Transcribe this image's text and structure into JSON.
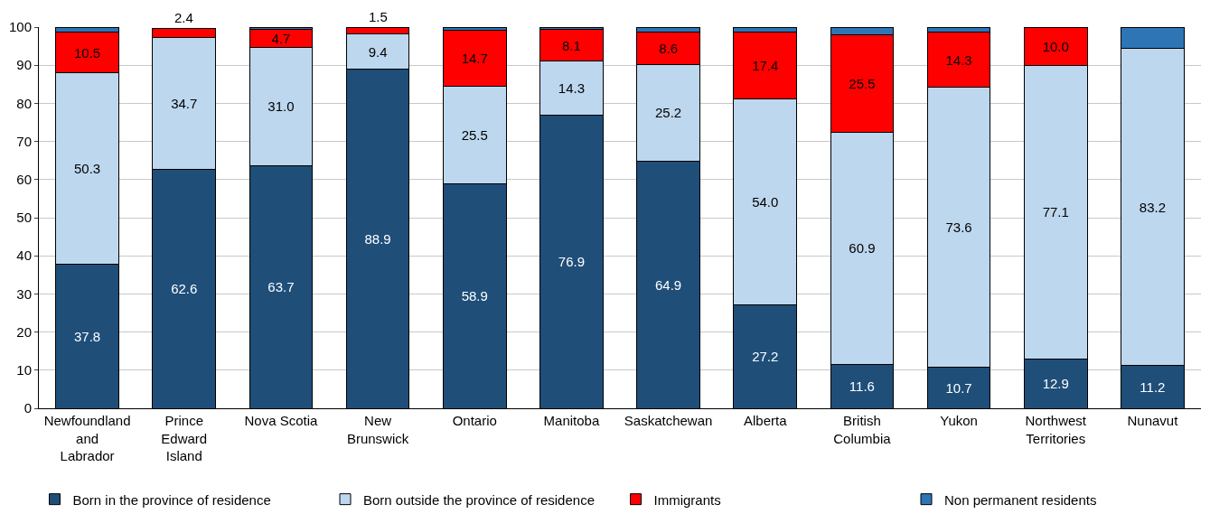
{
  "chart_data": {
    "type": "bar",
    "stacked": true,
    "categories": [
      "Newfoundland and Labrador",
      "Prince Edward Island",
      "Nova Scotia",
      "New Brunswick",
      "Ontario",
      "Manitoba",
      "Saskatchewan",
      "Alberta",
      "British Columbia",
      "Yukon",
      "Northwest Territories",
      "Nunavut"
    ],
    "series": [
      {
        "name": "Born in the province of residence",
        "color": "#1f4e79",
        "values": [
          37.8,
          62.6,
          63.7,
          88.9,
          58.9,
          76.9,
          64.9,
          27.2,
          11.6,
          10.7,
          12.9,
          11.2
        ],
        "value_labels": [
          "37.8",
          "62.6",
          "63.7",
          "88.9",
          "58.9",
          "76.9",
          "64.9",
          "27.2",
          "11.6",
          "10.7",
          "12.9",
          "11.2"
        ]
      },
      {
        "name": "Born outside the province of residence",
        "color": "#bdd7ee",
        "values": [
          50.3,
          34.7,
          31.0,
          9.4,
          25.5,
          14.3,
          25.2,
          54.0,
          60.9,
          73.6,
          77.1,
          83.2
        ],
        "value_labels": [
          "50.3",
          "34.7",
          "31.0",
          "9.4",
          "25.5",
          "14.3",
          "25.2",
          "54.0",
          "60.9",
          "73.6",
          "77.1",
          "83.2"
        ]
      },
      {
        "name": "Immigrants",
        "color": "#ff0000",
        "values": [
          10.5,
          2.4,
          4.7,
          1.5,
          14.7,
          8.1,
          8.6,
          17.4,
          25.5,
          14.3,
          10.0,
          null
        ],
        "value_labels": [
          "10.5",
          "2.4",
          "4.7",
          "1.5",
          "14.7",
          "8.1",
          "8.6",
          "17.4",
          "25.5",
          "14.3",
          "10.0",
          null
        ]
      },
      {
        "name": "Non permanent residents",
        "color": "#2e75b6",
        "values": [
          1.4,
          null,
          0.6,
          0.2,
          0.9,
          0.7,
          1.3,
          1.4,
          2.0,
          1.4,
          null,
          5.6
        ],
        "value_labels": [
          null,
          null,
          null,
          null,
          null,
          null,
          null,
          null,
          null,
          null,
          null,
          null
        ]
      }
    ],
    "ylim": [
      0,
      100
    ],
    "yticks": [
      0,
      10,
      20,
      30,
      40,
      50,
      60,
      70,
      80,
      90,
      100
    ],
    "grid": "y",
    "legend": "bottom"
  }
}
